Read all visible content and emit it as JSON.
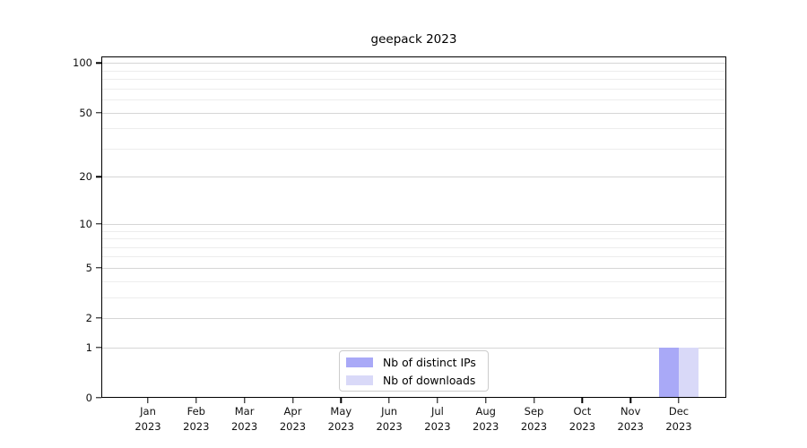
{
  "title": "geepack 2023",
  "chart_data": {
    "type": "bar",
    "title": "geepack 2023",
    "categories": [
      "Jan",
      "Feb",
      "Mar",
      "Apr",
      "May",
      "Jun",
      "Jul",
      "Aug",
      "Sep",
      "Oct",
      "Nov",
      "Dec"
    ],
    "year": "2023",
    "series": [
      {
        "name": "Nb of distinct IPs",
        "color": "#a9a9f7",
        "values": [
          0,
          0,
          0,
          0,
          0,
          0,
          0,
          0,
          0,
          0,
          0,
          1
        ]
      },
      {
        "name": "Nb of downloads",
        "color": "#d9d9f8",
        "values": [
          0,
          0,
          0,
          0,
          0,
          0,
          0,
          0,
          0,
          0,
          0,
          1
        ]
      }
    ],
    "y_axis": {
      "scale": "log10(1+x)",
      "ticks": [
        0,
        1,
        2,
        5,
        10,
        20,
        50,
        100
      ],
      "minor_ticks": [
        3,
        4,
        6,
        7,
        8,
        9,
        30,
        40,
        60,
        70,
        80,
        90
      ],
      "ylim": [
        0,
        110
      ]
    },
    "xlabel": "",
    "ylabel": "",
    "grid": true,
    "legend_position": "bottom-center-inside",
    "style": {
      "major_gridline_color": "#d6d6d6",
      "minor_gridline_color": "#ededed",
      "spine_color": "#000000",
      "legend_border_color": "#cccccc"
    }
  }
}
